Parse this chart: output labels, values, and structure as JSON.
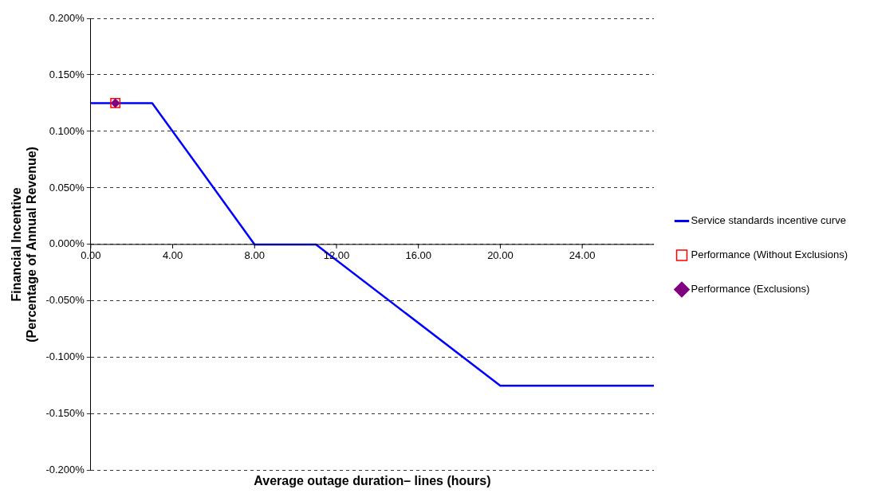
{
  "chart_data": {
    "type": "line",
    "xlabel": "Average outage duration– lines (hours)",
    "ylabel": "Financial Incentive\n(Percentage of Annual Revenue)",
    "xlim": [
      0,
      27.5
    ],
    "xticks": [
      {
        "value": 0,
        "label": "0.00"
      },
      {
        "value": 4,
        "label": "4.00"
      },
      {
        "value": 8,
        "label": "8.00"
      },
      {
        "value": 12,
        "label": "12.00"
      },
      {
        "value": 16,
        "label": "16.00"
      },
      {
        "value": 20,
        "label": "20.00"
      },
      {
        "value": 24,
        "label": "24.00"
      }
    ],
    "ylim": [
      -0.2,
      0.2
    ],
    "yticks": [
      {
        "value": -0.2,
        "label": "-0.200%"
      },
      {
        "value": -0.15,
        "label": "-0.150%"
      },
      {
        "value": -0.1,
        "label": "-0.100%"
      },
      {
        "value": -0.05,
        "label": "-0.050%"
      },
      {
        "value": 0,
        "label": "0.000%"
      },
      {
        "value": 0.05,
        "label": "0.050%"
      },
      {
        "value": 0.1,
        "label": "0.100%"
      },
      {
        "value": 0.15,
        "label": "0.150%"
      },
      {
        "value": 0.2,
        "label": "0.200%"
      }
    ],
    "grid": "y",
    "legend": "right",
    "series": [
      {
        "name": "Service standards incentive curve",
        "type": "line",
        "color": "#0000ff",
        "marker": "none",
        "x": [
          0,
          3,
          8,
          11,
          20,
          27.5
        ],
        "values": [
          0.125,
          0.125,
          0,
          0,
          -0.125,
          -0.125
        ]
      },
      {
        "name": "Performance (Without Exclusions)",
        "type": "scatter",
        "color": "#ff0000",
        "marker": "square",
        "x": [
          1.2
        ],
        "values": [
          0.125
        ]
      },
      {
        "name": "Performance (Exclusions)",
        "type": "scatter",
        "color": "#800080",
        "marker": "diamond",
        "x": [
          1.2
        ],
        "values": [
          0.125
        ]
      }
    ]
  }
}
